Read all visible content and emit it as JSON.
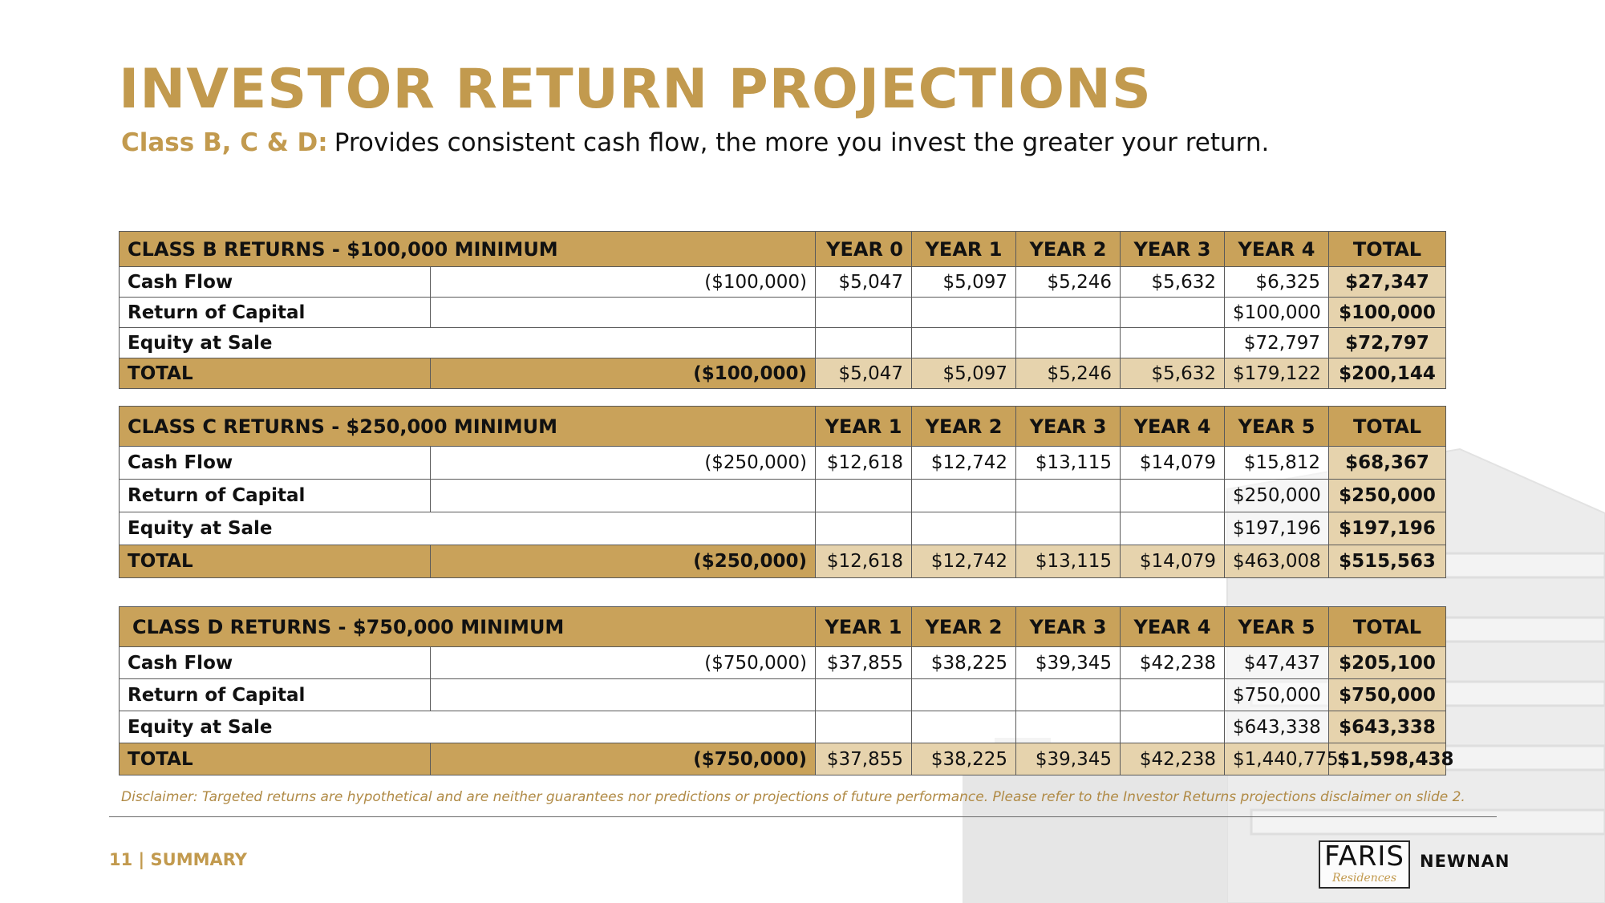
{
  "header": {
    "title": "INVESTOR RETURN PROJECTIONS",
    "subtitle_lead": "Class B, C & D:",
    "subtitle_rest": "Provides consistent cash flow, the more you invest the greater your return."
  },
  "columns": [
    "YEAR 0",
    "YEAR 1",
    "YEAR 2",
    "YEAR 3",
    "YEAR 4",
    "YEAR 5",
    "TOTAL"
  ],
  "tables": [
    {
      "title": "CLASS B RETURNS - $100,000 MINIMUM",
      "rows": [
        {
          "label": "Cash Flow",
          "cells": [
            "($100,000)",
            "$5,047",
            "$5,097",
            "$5,246",
            "$5,632",
            "$6,325",
            "$27,347"
          ]
        },
        {
          "label": "Return of Capital",
          "cells": [
            "",
            "",
            "",
            "",
            "",
            "$100,000",
            "$100,000"
          ]
        },
        {
          "label": "Equity at Sale",
          "cells": [
            "",
            "",
            "",
            "",
            "",
            "$72,797",
            "$72,797"
          ]
        },
        {
          "label": "TOTAL",
          "cells": [
            "($100,000)",
            "$5,047",
            "$5,097",
            "$5,246",
            "$5,632",
            "$179,122",
            "$200,144"
          ]
        }
      ]
    },
    {
      "title": "CLASS C RETURNS - $250,000 MINIMUM",
      "rows": [
        {
          "label": "Cash Flow",
          "cells": [
            "($250,000)",
            "$12,618",
            "$12,742",
            "$13,115",
            "$14,079",
            "$15,812",
            "$68,367"
          ]
        },
        {
          "label": "Return of Capital",
          "cells": [
            "",
            "",
            "",
            "",
            "",
            "$250,000",
            "$250,000"
          ]
        },
        {
          "label": "Equity at Sale",
          "cells": [
            "",
            "",
            "",
            "",
            "",
            "$197,196",
            "$197,196"
          ]
        },
        {
          "label": "TOTAL",
          "cells": [
            "($250,000)",
            "$12,618",
            "$12,742",
            "$13,115",
            "$14,079",
            "$463,008",
            "$515,563"
          ]
        }
      ]
    },
    {
      "title": "CLASS D RETURNS - $750,000 MINIMUM",
      "rows": [
        {
          "label": "Cash Flow",
          "cells": [
            "($750,000)",
            "$37,855",
            "$38,225",
            "$39,345",
            "$42,238",
            "$47,437",
            "$205,100"
          ]
        },
        {
          "label": "Return of Capital",
          "cells": [
            "",
            "",
            "",
            "",
            "",
            "$750,000",
            "$750,000"
          ]
        },
        {
          "label": "Equity at Sale",
          "cells": [
            "",
            "",
            "",
            "",
            "",
            "$643,338",
            "$643,338"
          ]
        },
        {
          "label": "TOTAL",
          "cells": [
            "($750,000)",
            "$37,855",
            "$38,225",
            "$39,345",
            "$42,238",
            "$1,440,775",
            "$1,598,438"
          ]
        }
      ]
    }
  ],
  "disclaimer": "Disclaimer: Targeted returns are hypothetical and are neither guarantees nor predictions or projections of future performance. Please refer to the Investor Returns projections disclaimer on slide 2.",
  "footer": {
    "page_label": "11 | SUMMARY",
    "logo_main": "FARIS",
    "logo_sub": "Residences",
    "logo_city": "NEWNAN"
  },
  "colors": {
    "accent": "#c29a4e",
    "header_fill": "#c9a25a",
    "total_fill": "#e6d3ad"
  }
}
